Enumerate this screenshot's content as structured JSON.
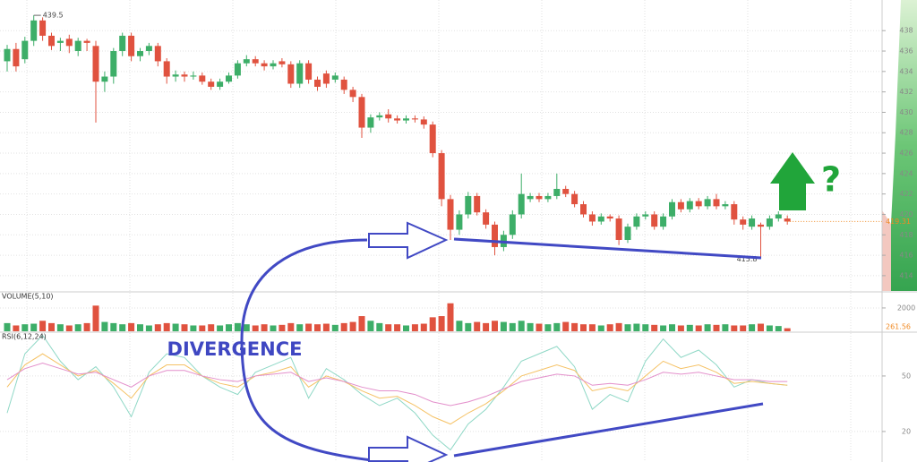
{
  "chart_data": [
    {
      "type": "candlestick",
      "up_color": "#3dae68",
      "down_color": "#e0523f",
      "ylim": [
        412.5,
        441
      ],
      "yticks": [
        414,
        416,
        418,
        420,
        422,
        424,
        426,
        428,
        430,
        432,
        434,
        436,
        438
      ],
      "grid": true,
      "high_marker": 439.5,
      "low_marker": 415.8,
      "last_price": 419.31,
      "open": [
        435.0,
        436.2,
        435.2,
        437.0,
        439.0,
        437.5,
        436.8,
        437.2,
        436.0,
        437.0,
        436.5,
        433.0,
        433.5,
        436.0,
        437.5,
        435.5,
        436.0,
        436.5,
        435.0,
        433.5,
        433.7,
        433.5,
        433.6,
        433.0,
        432.5,
        433.0,
        433.6,
        434.8,
        435.2,
        434.8,
        434.5,
        435.0,
        434.7,
        432.8,
        434.8,
        433.2,
        433.8,
        433.2,
        433.2,
        432.2,
        431.5,
        428.5,
        429.5,
        429.8,
        429.4,
        429.2,
        429.4,
        429.3,
        428.8,
        426.0,
        421.5,
        418.5,
        420.0,
        421.8,
        420.2,
        419.0,
        416.8,
        418.0,
        420.0,
        421.5,
        421.8,
        421.5,
        421.8,
        422.5,
        422.0,
        421.0,
        420.0,
        419.3,
        419.8,
        419.6,
        417.5,
        418.8,
        419.8,
        420.0,
        418.8,
        419.8,
        421.2,
        420.5,
        421.3,
        420.8,
        421.5,
        420.8,
        421.0,
        419.5,
        418.8,
        419.0,
        418.8,
        419.6,
        419.6
      ],
      "close": [
        436.2,
        434.5,
        437.0,
        439.0,
        437.5,
        436.5,
        437.0,
        436.5,
        437.0,
        436.8,
        433.0,
        433.5,
        436.0,
        437.5,
        435.5,
        436.0,
        436.5,
        435.0,
        433.5,
        433.7,
        433.5,
        433.6,
        433.0,
        432.5,
        433.0,
        433.6,
        434.8,
        435.2,
        434.8,
        434.5,
        434.8,
        434.7,
        432.8,
        434.8,
        433.2,
        432.5,
        432.8,
        433.6,
        432.2,
        431.5,
        428.5,
        429.5,
        429.7,
        429.4,
        429.2,
        429.4,
        429.3,
        428.8,
        426.0,
        421.5,
        418.5,
        420.0,
        421.8,
        420.2,
        419.0,
        416.8,
        418.0,
        420.0,
        422.0,
        421.8,
        421.5,
        421.8,
        422.5,
        422.0,
        421.0,
        420.0,
        419.3,
        419.8,
        419.6,
        417.5,
        418.8,
        419.8,
        420.0,
        418.8,
        419.8,
        421.2,
        420.5,
        421.3,
        420.8,
        421.5,
        420.8,
        421.0,
        419.5,
        419.0,
        419.6,
        418.8,
        419.6,
        420.0,
        419.3
      ],
      "high": [
        436.6,
        436.8,
        437.4,
        439.5,
        439.3,
        437.8,
        437.3,
        437.6,
        437.3,
        437.2,
        437.0,
        434.0,
        436.3,
        437.8,
        437.8,
        436.3,
        436.8,
        436.8,
        435.3,
        434.1,
        434.0,
        434.0,
        433.9,
        433.3,
        433.3,
        433.9,
        435.1,
        435.6,
        435.5,
        435.1,
        435.1,
        435.3,
        435.0,
        435.1,
        435.1,
        433.5,
        434.1,
        433.9,
        433.5,
        432.5,
        431.8,
        429.8,
        430.0,
        430.3,
        429.7,
        429.7,
        429.7,
        429.6,
        429.1,
        426.3,
        421.9,
        420.4,
        422.2,
        422.1,
        420.5,
        419.3,
        418.4,
        420.4,
        424.0,
        422.1,
        422.1,
        422.1,
        424.0,
        422.8,
        422.3,
        421.3,
        420.3,
        420.1,
        420.0,
        419.9,
        419.1,
        420.1,
        420.3,
        420.3,
        420.1,
        421.5,
        421.5,
        421.6,
        421.6,
        421.8,
        422.0,
        421.3,
        421.3,
        419.8,
        419.9,
        419.2,
        419.9,
        420.3,
        419.9
      ],
      "low": [
        434.0,
        434.0,
        434.8,
        436.5,
        437.0,
        436.1,
        436.0,
        435.8,
        435.5,
        436.0,
        429.0,
        432.0,
        432.8,
        435.5,
        435.0,
        435.0,
        435.6,
        434.5,
        432.8,
        433.0,
        433.0,
        433.2,
        432.7,
        432.2,
        432.2,
        432.8,
        433.3,
        434.5,
        434.5,
        434.1,
        434.2,
        434.4,
        432.4,
        432.4,
        432.8,
        432.1,
        432.4,
        432.9,
        431.8,
        431.0,
        427.5,
        428.0,
        429.2,
        429.0,
        428.9,
        428.9,
        429.0,
        428.4,
        425.6,
        420.8,
        417.5,
        418.0,
        419.6,
        419.9,
        418.6,
        416.0,
        416.4,
        417.6,
        419.6,
        421.2,
        421.2,
        421.2,
        421.5,
        421.7,
        420.7,
        419.7,
        418.9,
        419.0,
        419.3,
        417.0,
        417.2,
        418.5,
        419.5,
        418.5,
        418.5,
        419.5,
        420.2,
        420.2,
        420.5,
        420.5,
        420.5,
        420.5,
        419.0,
        418.5,
        418.5,
        415.8,
        418.5,
        419.3,
        419.0
      ]
    },
    {
      "type": "bar",
      "title": "VOLUME(5,10)",
      "ylim": [
        0,
        3300
      ],
      "yticks": [
        2000
      ],
      "values": [
        700,
        500,
        600,
        650,
        900,
        700,
        600,
        500,
        600,
        700,
        2200,
        800,
        700,
        600,
        700,
        600,
        500,
        600,
        700,
        650,
        600,
        500,
        500,
        600,
        500,
        600,
        700,
        600,
        500,
        600,
        500,
        550,
        700,
        600,
        650,
        600,
        650,
        550,
        700,
        800,
        1300,
        900,
        700,
        600,
        600,
        500,
        600,
        650,
        1200,
        1300,
        2400,
        900,
        700,
        800,
        700,
        900,
        800,
        700,
        900,
        700,
        650,
        600,
        700,
        800,
        700,
        600,
        600,
        500,
        600,
        700,
        600,
        650,
        600,
        550,
        500,
        600,
        500,
        550,
        500,
        600,
        550,
        600,
        500,
        500,
        600,
        650,
        500,
        450,
        261.56
      ],
      "last_color": "#f08a24"
    },
    {
      "type": "line",
      "title": "RSI(6,12,24)",
      "ylim": [
        3.5,
        73.2
      ],
      "yticks": [
        20,
        50
      ],
      "x": [
        0,
        2,
        4,
        6,
        8,
        10,
        12,
        14,
        16,
        18,
        20,
        22,
        24,
        26,
        28,
        30,
        32,
        34,
        36,
        38,
        40,
        42,
        44,
        46,
        48,
        50,
        52,
        54,
        56,
        58,
        60,
        62,
        64,
        66,
        68,
        70,
        72,
        74,
        76,
        78,
        80,
        82,
        84,
        86,
        88
      ],
      "series": [
        {
          "name": "RSI6",
          "color": "#8fd8c6",
          "values": [
            30,
            62,
            72,
            58,
            48,
            55,
            44,
            28,
            52,
            62,
            60,
            50,
            44,
            40,
            52,
            56,
            60,
            38,
            54,
            48,
            40,
            34,
            38,
            30,
            18,
            10,
            24,
            32,
            44,
            58,
            62,
            66,
            55,
            32,
            40,
            36,
            58,
            70,
            60,
            64,
            56,
            44,
            48,
            46,
            45
          ]
        },
        {
          "name": "RSI12",
          "color": "#f5c266",
          "values": [
            44,
            56,
            62,
            56,
            50,
            53,
            46,
            38,
            50,
            56,
            56,
            50,
            46,
            44,
            50,
            52,
            55,
            44,
            50,
            47,
            42,
            38,
            39,
            34,
            28,
            24,
            30,
            35,
            42,
            50,
            53,
            56,
            53,
            42,
            44,
            42,
            50,
            58,
            54,
            56,
            52,
            46,
            47,
            46,
            45
          ]
        },
        {
          "name": "RSI24",
          "color": "#e38fcb",
          "values": [
            48,
            54,
            57,
            54,
            51,
            52,
            48,
            44,
            50,
            53,
            53,
            50,
            48,
            47,
            50,
            51,
            52,
            47,
            49,
            47,
            44,
            42,
            42,
            40,
            36,
            34,
            36,
            39,
            43,
            47,
            49,
            51,
            50,
            45,
            46,
            45,
            48,
            52,
            51,
            52,
            50,
            48,
            48,
            47,
            47
          ]
        }
      ]
    }
  ],
  "annotations": {
    "label": "DIVERGENCE",
    "question": "?"
  }
}
